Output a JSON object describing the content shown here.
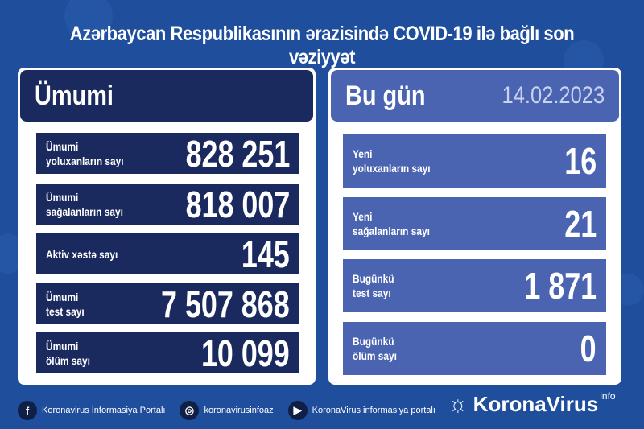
{
  "title": "Azərbaycan Respublikasının ərazisində COVID-19 ilə bağlı son vəziyyət",
  "total": {
    "header": "Ümumi",
    "rows": [
      {
        "label1": "Ümumi",
        "label2": "yoluxanların sayı",
        "value": "828 251"
      },
      {
        "label1": "Ümumi",
        "label2": "sağalanların sayı",
        "value": "818 007"
      },
      {
        "label1": "Aktiv xəstə sayı",
        "label2": "",
        "value": "145"
      },
      {
        "label1": "Ümumi",
        "label2": "test sayı",
        "value": "7 507 868"
      },
      {
        "label1": "Ümumi",
        "label2": "ölüm sayı",
        "value": "10 099"
      }
    ]
  },
  "today": {
    "header": "Bu gün",
    "date": "14.02.2023",
    "rows": [
      {
        "label1": "Yeni",
        "label2": "yoluxanların sayı",
        "value": "16"
      },
      {
        "label1": "Yeni",
        "label2": "sağalanların sayı",
        "value": "21"
      },
      {
        "label1": "Bugünkü",
        "label2": "test sayı",
        "value": "1 871"
      },
      {
        "label1": "Bugünkü",
        "label2": "ölüm sayı",
        "value": "0"
      }
    ]
  },
  "footer": {
    "links": [
      {
        "icon": "facebook-icon",
        "text": "Koronavirus İnformasiya Portalı"
      },
      {
        "icon": "instagram-icon",
        "text": "koronavirusinfoaz"
      },
      {
        "icon": "youtube-icon",
        "text": "KoronaVirus informasiya portalı"
      }
    ],
    "brand": "KoronaVirus",
    "brand_sup": "info"
  },
  "colors": {
    "background": "#1f4e9c",
    "total_panel": "#1b2a5e",
    "today_panel": "#4a64b2"
  }
}
